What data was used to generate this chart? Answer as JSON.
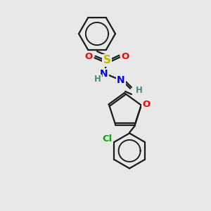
{
  "background_color": "#e8e8e8",
  "bond_color": "#1a1a1a",
  "atom_colors": {
    "S": "#c8b400",
    "O": "#ff0000",
    "N": "#0000ee",
    "H": "#448888",
    "Cl": "#00aa00",
    "C": "#1a1a1a"
  },
  "figsize": [
    3.0,
    3.0
  ],
  "dpi": 100,
  "bond_lw": 1.6,
  "double_sep": 3.0
}
